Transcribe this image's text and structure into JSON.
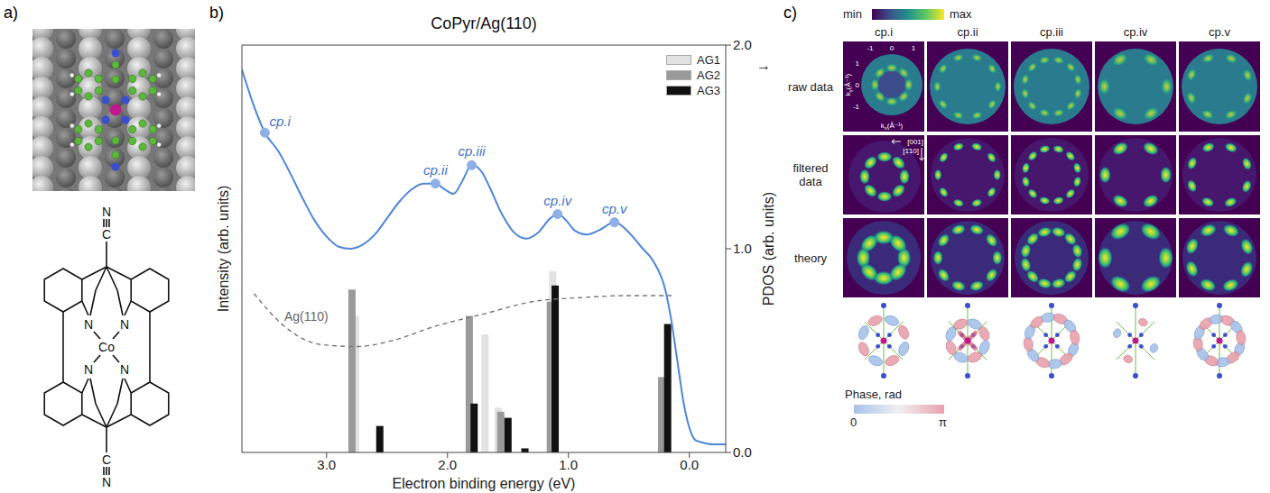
{
  "panel_a": {
    "label": "a)",
    "atoms": {
      "metal": "Co",
      "nitrogen": "N",
      "carbon": "C"
    }
  },
  "chart_data": {
    "panel": "b)",
    "type": "line",
    "title": "CoPyr/Ag(110)",
    "xlabel": "Electron binding energy (eV)",
    "ylabel": "Intensity (arb. units)",
    "y2label": "PDOS (arb. units)",
    "y2label_arrow": "→",
    "xlim": [
      3.7,
      -0.3
    ],
    "xticks": [
      {
        "value": 3,
        "label": "3.0"
      },
      {
        "value": 2,
        "label": "2.0"
      },
      {
        "value": 1,
        "label": "1.0"
      },
      {
        "value": 0,
        "label": "0.0"
      }
    ],
    "ylim": [
      0,
      2
    ],
    "yticks": [],
    "y2lim": [
      0,
      2
    ],
    "y2ticks": [
      {
        "value": 0,
        "label": "0.0"
      },
      {
        "value": 1,
        "label": "1.0"
      },
      {
        "value": 2,
        "label": "2.0"
      }
    ],
    "legend": "top-right",
    "series": [
      {
        "type": "line",
        "color": "#4f86d9",
        "x": [
          3.7,
          3.6,
          3.51,
          3.4,
          3.3,
          3.2,
          3.1,
          3.0,
          2.9,
          2.8,
          2.7,
          2.6,
          2.5,
          2.4,
          2.3,
          2.2,
          2.1,
          2.02,
          1.95,
          1.88,
          1.8,
          1.72,
          1.65,
          1.55,
          1.45,
          1.35,
          1.25,
          1.15,
          1.09,
          1.02,
          0.95,
          0.85,
          0.75,
          0.62,
          0.5,
          0.4,
          0.3,
          0.2,
          0.15,
          0.1,
          0.05,
          0.0,
          -0.05,
          -0.1,
          -0.2,
          -0.3
        ],
        "values": [
          1.88,
          1.7,
          1.57,
          1.48,
          1.37,
          1.25,
          1.14,
          1.06,
          1.01,
          1.0,
          1.02,
          1.07,
          1.15,
          1.23,
          1.29,
          1.32,
          1.32,
          1.29,
          1.27,
          1.33,
          1.41,
          1.38,
          1.3,
          1.17,
          1.08,
          1.05,
          1.08,
          1.15,
          1.17,
          1.14,
          1.09,
          1.07,
          1.09,
          1.13,
          1.08,
          1.01,
          0.94,
          0.8,
          0.65,
          0.45,
          0.25,
          0.12,
          0.06,
          0.05,
          0.04,
          0.04
        ]
      },
      {
        "name": "Ag(110)",
        "type": "line",
        "line_style": "dashed",
        "color": "#777777",
        "x": [
          3.6,
          3.35,
          3.05,
          2.75,
          2.45,
          2.1,
          1.7,
          1.3,
          0.9,
          0.5,
          0.25,
          0.12
        ],
        "values": [
          0.78,
          0.62,
          0.53,
          0.52,
          0.55,
          0.62,
          0.68,
          0.74,
          0.76,
          0.77,
          0.77,
          0.77
        ]
      },
      {
        "name": "AG1",
        "type": "bar",
        "axis": "y2",
        "color": "#e2e2e2",
        "x": [
          2.76,
          1.69,
          1.58,
          1.13,
          0.2
        ],
        "values": [
          0.67,
          0.58,
          0.22,
          0.89,
          0.2
        ]
      },
      {
        "name": "AG2",
        "type": "bar",
        "axis": "y2",
        "color": "#9a9a9a",
        "x": [
          2.79,
          1.82,
          1.56,
          1.15,
          0.23
        ],
        "values": [
          0.8,
          0.67,
          0.2,
          0.74,
          0.37
        ]
      },
      {
        "name": "AG3",
        "type": "bar",
        "axis": "y2",
        "color": "#111111",
        "x": [
          2.56,
          1.78,
          1.5,
          1.36,
          1.11,
          0.18
        ],
        "values": [
          0.13,
          0.24,
          0.17,
          0.02,
          0.82,
          0.63
        ]
      }
    ],
    "annotations": [
      {
        "text": "cp.i",
        "x": 3.51,
        "y": 1.57
      },
      {
        "text": "cp.ii",
        "x": 2.1,
        "y": 1.32
      },
      {
        "text": "cp.iii",
        "x": 1.8,
        "y": 1.41
      },
      {
        "text": "cp.iv",
        "x": 1.09,
        "y": 1.17
      },
      {
        "text": "cp.v",
        "x": 0.62,
        "y": 1.13
      }
    ]
  },
  "panel_c": {
    "label": "c)",
    "colorbar": {
      "min": "min",
      "max": "max"
    },
    "columns": [
      "cp.i",
      "cp.ii",
      "cp.iii",
      "cp.iv",
      "cp.v"
    ],
    "rows": [
      "raw data",
      "filtered data",
      "theory"
    ],
    "k_axis": {
      "x_ticks": [
        "-1",
        "0",
        "1"
      ],
      "y_ticks": [
        "1",
        "0",
        "-1"
      ],
      "x_label": {
        "base": "k",
        "sub": "x",
        "unit": "(Å⁻¹)"
      },
      "y_label": {
        "base": "k",
        "sub": "y",
        "unit": "(Å⁻¹)"
      }
    },
    "directions": [
      "[001]",
      "[1̄10]"
    ],
    "phase_bar": {
      "title": "Phase, rad",
      "min": "0",
      "max": "π"
    }
  }
}
